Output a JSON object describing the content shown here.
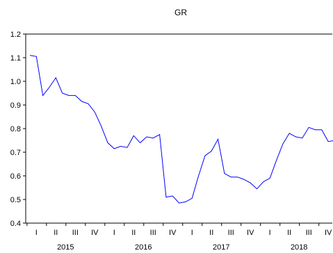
{
  "chart_data": {
    "type": "line",
    "title": "GR",
    "xlabel": "",
    "ylabel": "",
    "ylim": [
      0.4,
      1.2
    ],
    "yticks": [
      0.4,
      0.5,
      0.6,
      0.7,
      0.8,
      0.9,
      1.0,
      1.1,
      1.2
    ],
    "ytick_labels": [
      "0.4",
      "0.5",
      "0.6",
      "0.7",
      "0.8",
      "0.9",
      "1.0",
      "1.1",
      "1.2"
    ],
    "quarter_labels": [
      "I",
      "II",
      "III",
      "IV",
      "I",
      "II",
      "III",
      "IV",
      "I",
      "II",
      "III",
      "IV",
      "I",
      "II",
      "III",
      "IV"
    ],
    "year_labels": [
      "2015",
      "2016",
      "2017",
      "2018"
    ],
    "grid": false,
    "series_color": "#0000ff",
    "series": [
      {
        "x": [
          "2015M01",
          "2015M02",
          "2015M03",
          "2015M04",
          "2015M05",
          "2015M06",
          "2015M07",
          "2015M08",
          "2015M09",
          "2015M10",
          "2015M11",
          "2015M12",
          "2016M01",
          "2016M02",
          "2016M03",
          "2016M04",
          "2016M05",
          "2016M06",
          "2016M07",
          "2016M08",
          "2016M09",
          "2016M10",
          "2016M11",
          "2016M12",
          "2017M01",
          "2017M02",
          "2017M03",
          "2017M04",
          "2017M05",
          "2017M06",
          "2017M07",
          "2017M08",
          "2017M09",
          "2017M10",
          "2017M11",
          "2017M12",
          "2018M01",
          "2018M02",
          "2018M03",
          "2018M04",
          "2018M05",
          "2018M06",
          "2018M07",
          "2018M08",
          "2018M09",
          "2018M10",
          "2018M11",
          "2018M12"
        ],
        "values": [
          1.11,
          1.105,
          0.94,
          0.975,
          1.015,
          0.95,
          0.94,
          0.94,
          0.915,
          0.905,
          0.87,
          0.81,
          0.74,
          0.715,
          0.725,
          0.72,
          0.77,
          0.74,
          0.765,
          0.76,
          0.775,
          0.51,
          0.515,
          0.485,
          0.49,
          0.505,
          0.6,
          0.685,
          0.705,
          0.755,
          0.61,
          0.595,
          0.595,
          0.585,
          0.57,
          0.545,
          0.575,
          0.59,
          0.665,
          0.735,
          0.78,
          0.765,
          0.76,
          0.805,
          0.795,
          0.795,
          0.745,
          0.75
        ]
      }
    ]
  }
}
